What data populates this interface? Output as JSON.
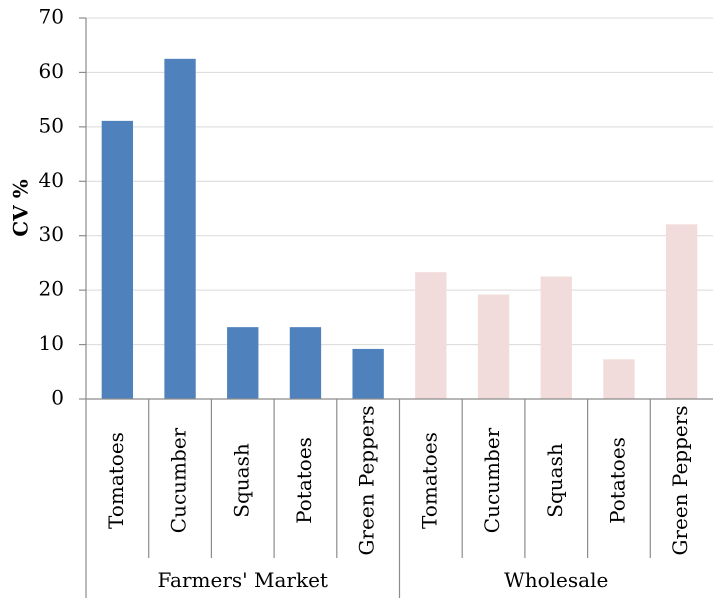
{
  "chart_data": {
    "type": "bar",
    "title": "",
    "xlabel": "",
    "ylabel": "CV %",
    "ylim": [
      0,
      70
    ],
    "yticks": [
      0,
      10,
      20,
      30,
      40,
      50,
      60,
      70
    ],
    "grid": true,
    "legend": "none",
    "groups": [
      {
        "name": "Farmers' Market",
        "color": "#4f81bd",
        "categories": [
          "Tomatoes",
          "Cucumber",
          "Squash",
          "Potatoes",
          "Green Peppers"
        ],
        "values": [
          51.1,
          62.5,
          13.2,
          13.2,
          9.2
        ]
      },
      {
        "name": "Wholesale",
        "color": "#f2dcdb",
        "categories": [
          "Tomatoes",
          "Cucumber",
          "Squash",
          "Potatoes",
          "Green Peppers"
        ],
        "values": [
          23.3,
          19.2,
          22.5,
          7.3,
          32.1
        ]
      }
    ]
  }
}
